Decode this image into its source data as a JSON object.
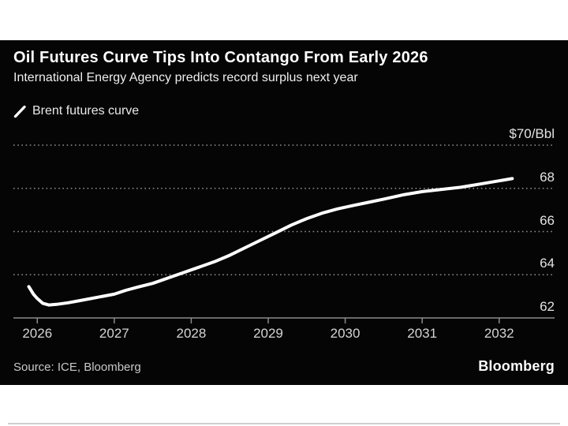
{
  "header": {
    "title": "Oil Futures Curve Tips Into Contango From Early 2026",
    "subtitle": "International Energy Agency predicts record surplus next year"
  },
  "legend": {
    "marker": "slash-line-icon",
    "label": "Brent futures curve"
  },
  "footer": {
    "source": "Source: ICE, Bloomberg",
    "brand": "Bloomberg"
  },
  "colors": {
    "card_bg": "#050505",
    "line": "#ffffff",
    "grid": "#909090",
    "axis": "#8c8c8c",
    "y_label": "#e3e3e3",
    "x_label": "#d4d4d4"
  },
  "chart_data": {
    "type": "line",
    "title": "Oil Futures Curve Tips Into Contango From Early 2026",
    "subtitle": "International Energy Agency predicts record surplus next year",
    "xlabel": "",
    "ylabel": "$/Bbl",
    "grid": "horizontal-dotted",
    "legend_position": "top-left",
    "xlim": [
      2025.69,
      2032.72
    ],
    "ylim": [
      62,
      70
    ],
    "x_ticks": [
      2026,
      2027,
      2028,
      2029,
      2030,
      2031,
      2032
    ],
    "y_ticks": [
      {
        "value": 70,
        "label": "$70/Bbl"
      },
      {
        "value": 68,
        "label": "68"
      },
      {
        "value": 66,
        "label": "66"
      },
      {
        "value": 64,
        "label": "64"
      },
      {
        "value": 62,
        "label": "62"
      }
    ],
    "series": [
      {
        "name": "Brent futures curve",
        "color": "#ffffff",
        "x": [
          2025.89,
          2025.95,
          2026.0,
          2026.07,
          2026.15,
          2026.25,
          2026.4,
          2026.55,
          2026.7,
          2026.85,
          2027.0,
          2027.15,
          2027.3,
          2027.5,
          2027.7,
          2027.9,
          2028.1,
          2028.3,
          2028.5,
          2028.7,
          2028.9,
          2029.1,
          2029.3,
          2029.5,
          2029.7,
          2029.9,
          2030.1,
          2030.3,
          2030.5,
          2030.75,
          2031.0,
          2031.25,
          2031.5,
          2031.75,
          2032.0,
          2032.17
        ],
        "values": [
          63.45,
          63.1,
          62.9,
          62.68,
          62.6,
          62.63,
          62.7,
          62.8,
          62.9,
          63.0,
          63.1,
          63.28,
          63.42,
          63.6,
          63.85,
          64.1,
          64.35,
          64.6,
          64.9,
          65.25,
          65.6,
          65.95,
          66.3,
          66.6,
          66.85,
          67.05,
          67.2,
          67.35,
          67.5,
          67.7,
          67.85,
          67.95,
          68.05,
          68.2,
          68.35,
          68.45
        ]
      }
    ]
  }
}
